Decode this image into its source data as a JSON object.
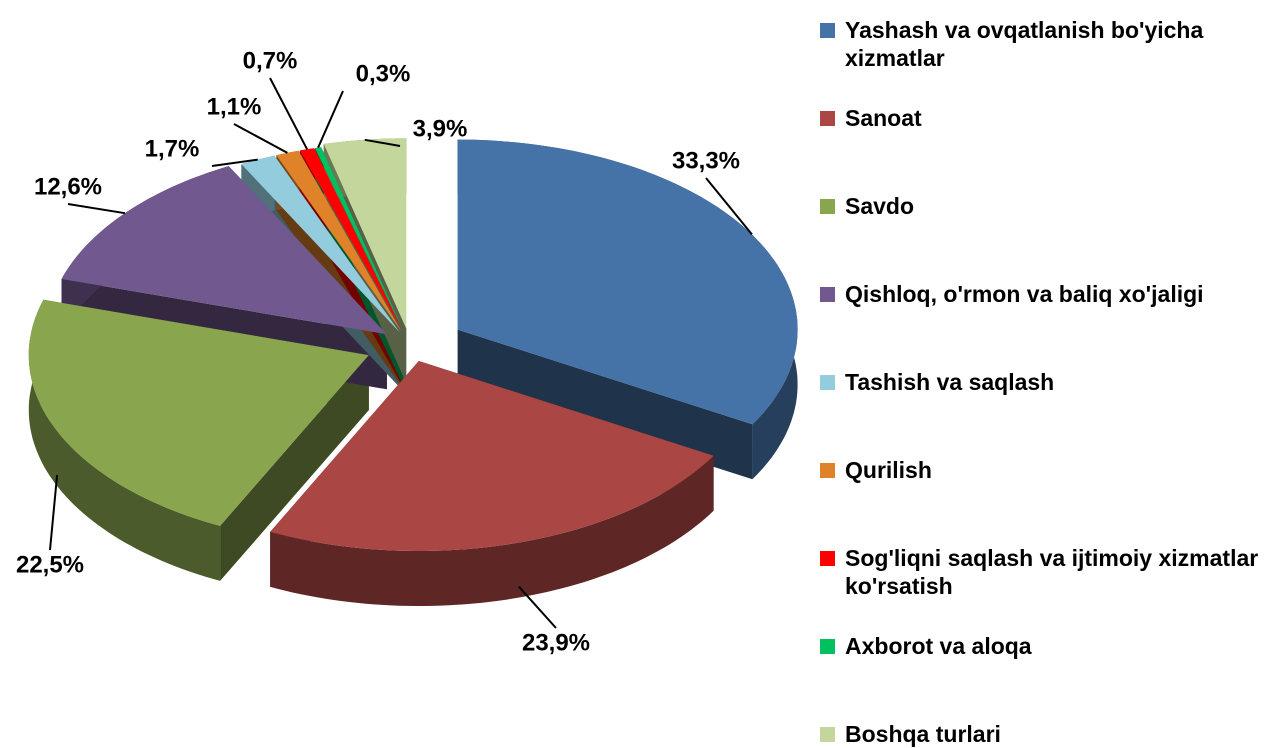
{
  "chart_data": {
    "type": "pie",
    "categories": [
      "Yashash va ovqatlanish bo'yicha xizmatlar",
      "Sanoat",
      "Savdo",
      "Qishloq, o'rmon va baliq xo'jaligi",
      "Tashish va saqlash",
      "Qurilish",
      "Sog'liqni saqlash va ijtimoiy xizmatlar ko'rsatish",
      "Axborot va aloqa",
      "Boshqa turlari"
    ],
    "values": [
      33.3,
      23.9,
      22.5,
      12.6,
      1.7,
      1.1,
      0.7,
      0.3,
      3.9
    ],
    "value_labels": [
      "33,3%",
      "23,9%",
      "22,5%",
      "12,6%",
      "1,7%",
      "1,1%",
      "0,7%",
      "0,3%",
      "3,9%"
    ],
    "colors": [
      "#4572a7",
      "#aa4643",
      "#89a54e",
      "#71588f",
      "#93cddd",
      "#e0822a",
      "#ff0000",
      "#00c060",
      "#c3d69b"
    ],
    "legend": "right"
  }
}
